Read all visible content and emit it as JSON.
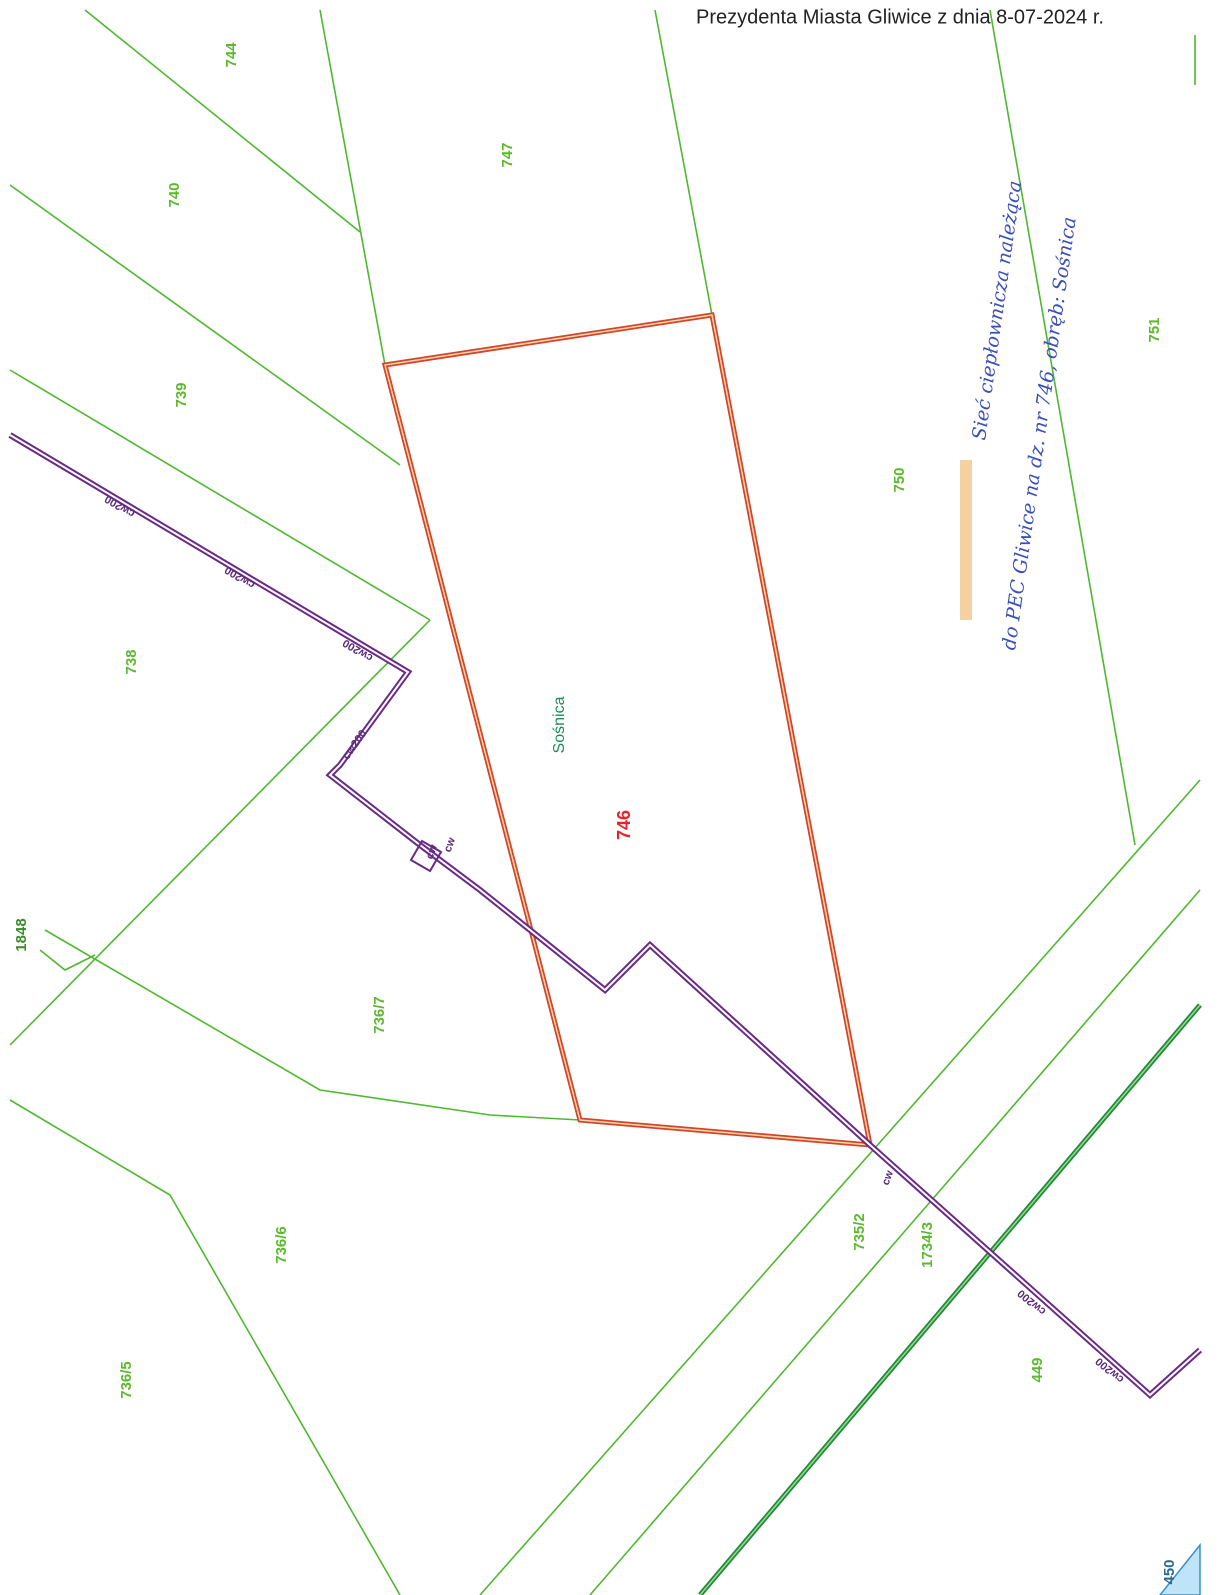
{
  "header": {
    "text": "Prezydenta Miasta Gliwice z dnia 8-07-2024 r."
  },
  "parcels": [
    {
      "label": "744"
    },
    {
      "label": "747"
    },
    {
      "label": "740"
    },
    {
      "label": "739"
    },
    {
      "label": "738"
    },
    {
      "label": "750"
    },
    {
      "label": "751"
    },
    {
      "label": "746"
    },
    {
      "label": "1848"
    },
    {
      "label": "736/7"
    },
    {
      "label": "736/6"
    },
    {
      "label": "736/5"
    },
    {
      "label": "735/2"
    },
    {
      "label": "1734/3"
    },
    {
      "label": "449"
    },
    {
      "label": "450"
    }
  ],
  "place": "Sośnica",
  "pipe_labels": [
    "cw200",
    "cw200",
    "cw200",
    "cw200",
    "cw",
    "cw",
    "cw",
    "cw200",
    "cw200"
  ],
  "note": {
    "lines": [
      "Sieć ciepłownicza należąca",
      "do PEC Gliwice na dz. nr 746, obręb: Sośnica"
    ]
  }
}
